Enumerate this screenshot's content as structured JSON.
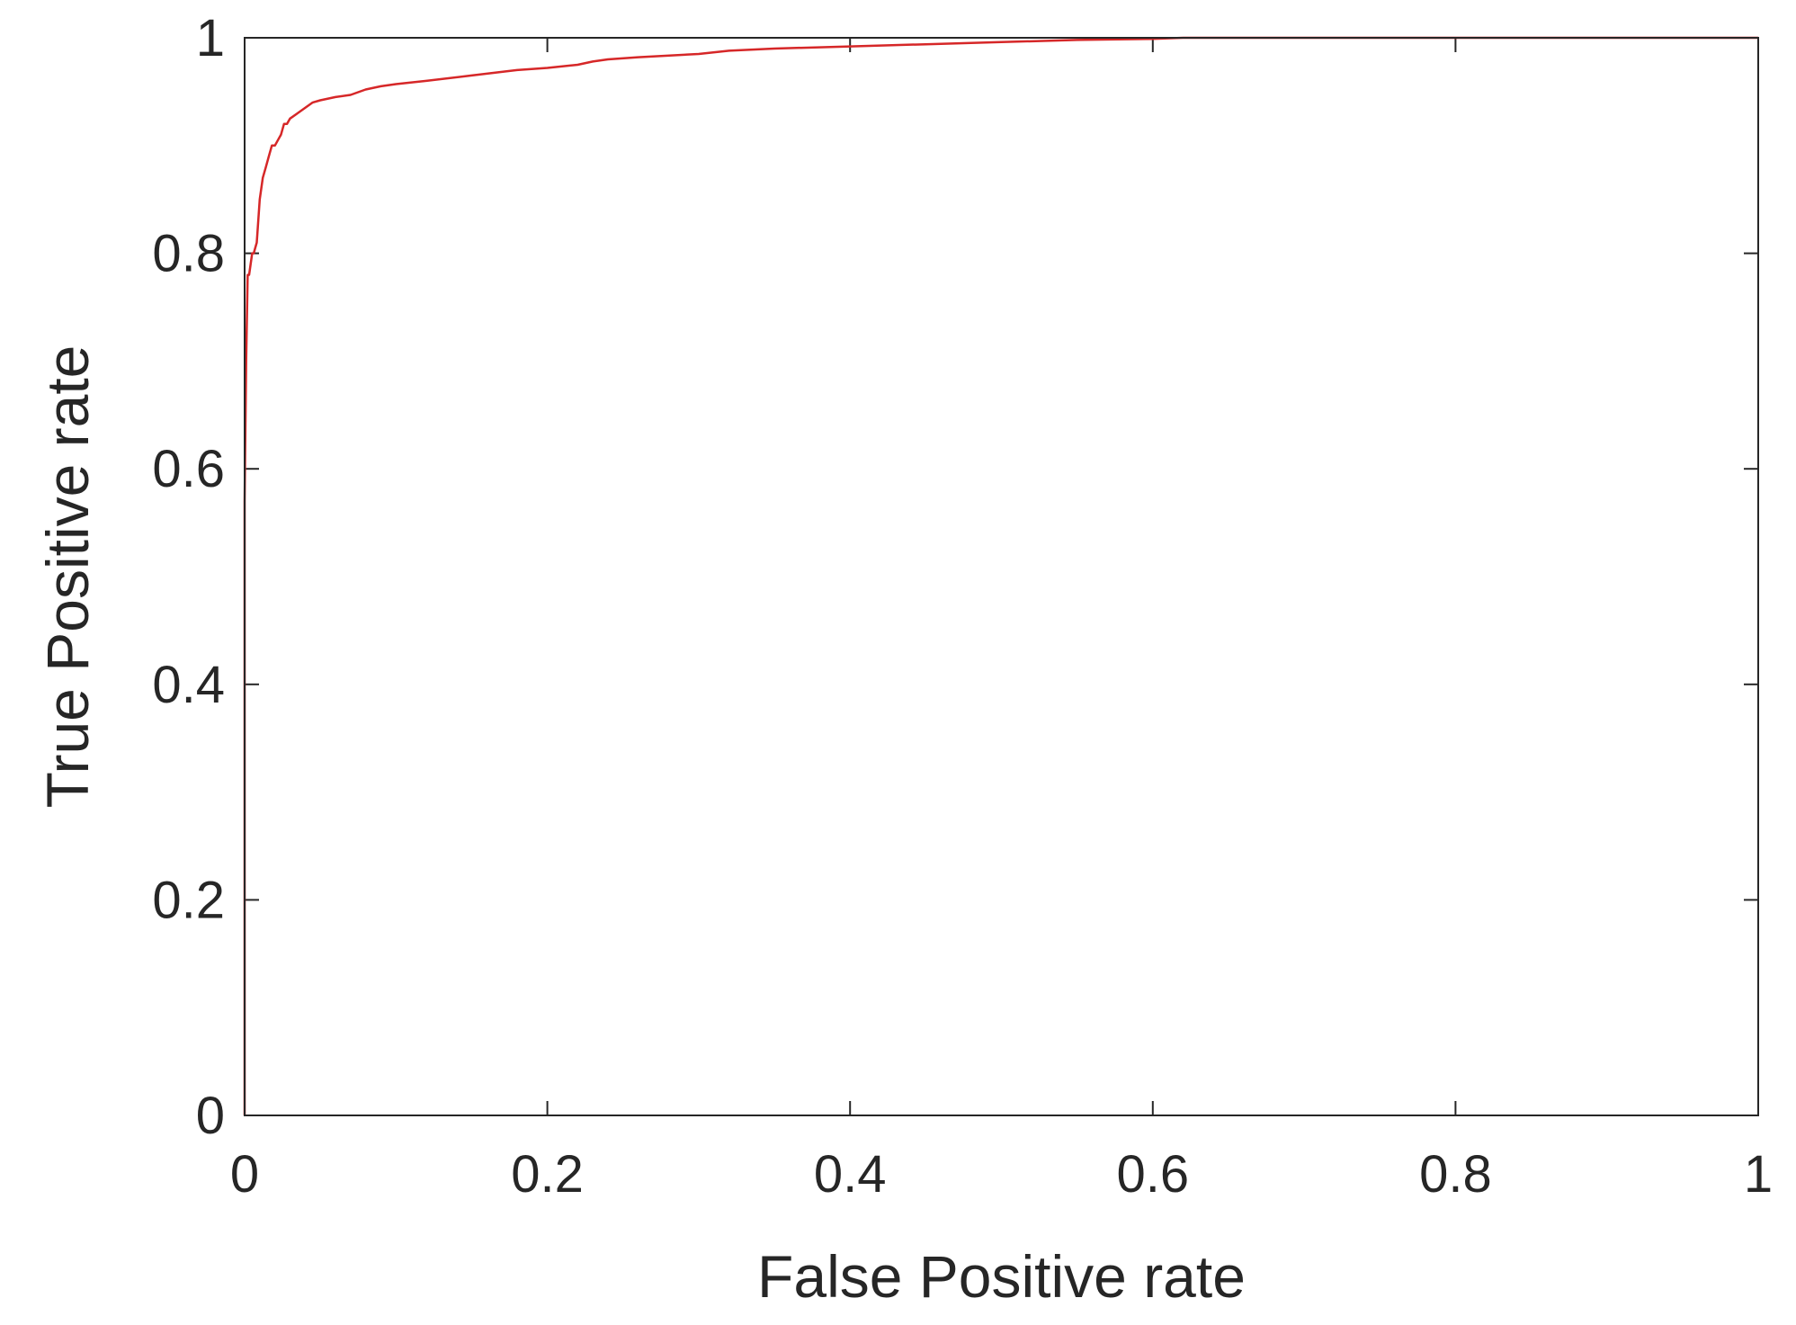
{
  "chart_data": {
    "type": "line",
    "title": "",
    "xlabel": "False Positive rate",
    "ylabel": "True Positive rate",
    "xlim": [
      0,
      1
    ],
    "ylim": [
      0,
      1
    ],
    "xticks": [
      0,
      0.2,
      0.4,
      0.6,
      0.8,
      1
    ],
    "xtick_labels": [
      "0",
      "0.2",
      "0.4",
      "0.6",
      "0.8",
      "1"
    ],
    "yticks": [
      0,
      0.2,
      0.4,
      0.6,
      0.8,
      1
    ],
    "ytick_labels": [
      "0",
      "0.2",
      "0.4",
      "0.6",
      "0.8",
      "1"
    ],
    "grid": false,
    "legend": "none",
    "series": [
      {
        "color": "#d62728",
        "x": [
          0,
          0,
          0.001,
          0.002,
          0.003,
          0.004,
          0.005,
          0.006,
          0.008,
          0.01,
          0.011,
          0.012,
          0.014,
          0.016,
          0.018,
          0.02,
          0.022,
          0.024,
          0.026,
          0.028,
          0.03,
          0.035,
          0.04,
          0.045,
          0.05,
          0.06,
          0.07,
          0.08,
          0.09,
          0.1,
          0.12,
          0.15,
          0.18,
          0.2,
          0.22,
          0.23,
          0.24,
          0.26,
          0.3,
          0.32,
          0.35,
          0.4,
          0.45,
          0.5,
          0.55,
          0.6,
          0.62,
          0.65,
          0.7,
          0.8,
          0.9,
          1.0
        ],
        "y": [
          0,
          0.57,
          0.7,
          0.78,
          0.78,
          0.79,
          0.8,
          0.8,
          0.81,
          0.85,
          0.86,
          0.87,
          0.88,
          0.89,
          0.9,
          0.9,
          0.905,
          0.91,
          0.92,
          0.92,
          0.925,
          0.93,
          0.935,
          0.94,
          0.942,
          0.945,
          0.947,
          0.952,
          0.955,
          0.957,
          0.96,
          0.965,
          0.97,
          0.972,
          0.975,
          0.978,
          0.98,
          0.982,
          0.985,
          0.988,
          0.99,
          0.992,
          0.994,
          0.996,
          0.998,
          0.999,
          1.0,
          1.0,
          1.0,
          1.0,
          1.0,
          1.0
        ]
      }
    ]
  }
}
